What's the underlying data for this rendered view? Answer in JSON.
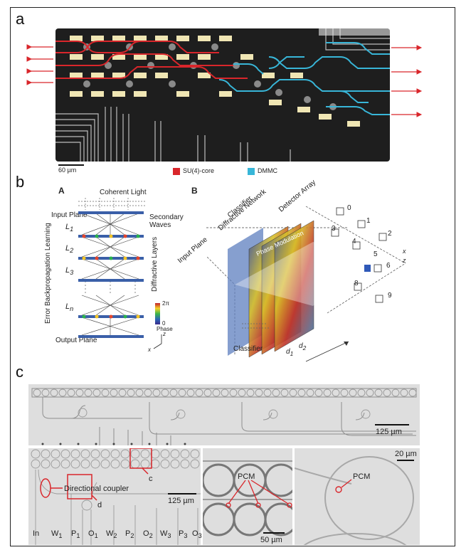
{
  "panel_labels": {
    "a": "a",
    "b": "b",
    "c": "c"
  },
  "panel_a": {
    "scale_bar": "60 µm",
    "legend": [
      {
        "label": "SU(4)-core",
        "color": "#d9262b"
      },
      {
        "label": "DMMC",
        "color": "#38b6d8"
      }
    ]
  },
  "panel_b": {
    "subA": {
      "label": "A",
      "coherent_light": "Coherent Light",
      "input_plane": "Input Plane",
      "secondary_waves": "Secondary Waves",
      "diffractive_layers": "Diffractive Layers",
      "error_bp": "Error Backpropagation Learning",
      "layers": [
        "L",
        "L",
        "L",
        "L"
      ],
      "layer_subs": [
        "1",
        "2",
        "3",
        "n"
      ],
      "output_plane": "Output Plane",
      "colorbar_top": "2π",
      "colorbar_bottom": "0",
      "colorbar_label": "Phase",
      "axis_z": "z",
      "axis_x": "x"
    },
    "subB": {
      "label": "B",
      "input_plane": "Input Plane",
      "diffractive_network": "Diffractive Network",
      "classifier_top": "Classifier",
      "detector_array": "Detector Array",
      "phase_modulation": "Phase Modulation",
      "digits": [
        "0",
        "1",
        "2",
        "3",
        "4",
        "5",
        "6",
        "8",
        "9"
      ],
      "classifier_bottom": "Classifier",
      "d1": "d",
      "d2": "d",
      "d1_sub": "1",
      "d2_sub": "2",
      "axis_x": "x",
      "axis_z": "z"
    }
  },
  "panel_c": {
    "top_scale": "125 µm",
    "bl_scale": "125 µm",
    "directional_coupler": "Directional coupler",
    "label_c": "c",
    "label_d": "d",
    "ports": [
      "In",
      "W",
      "P",
      "O",
      "W",
      "P",
      "O",
      "W",
      "P",
      "O"
    ],
    "port_subs": [
      "",
      "1",
      "1",
      "1",
      "2",
      "2",
      "2",
      "3",
      "3",
      "3"
    ],
    "mid_pcm": "PCM",
    "mid_scale": "50 µm",
    "right_pcm": "PCM",
    "right_scale": "20 µm"
  }
}
